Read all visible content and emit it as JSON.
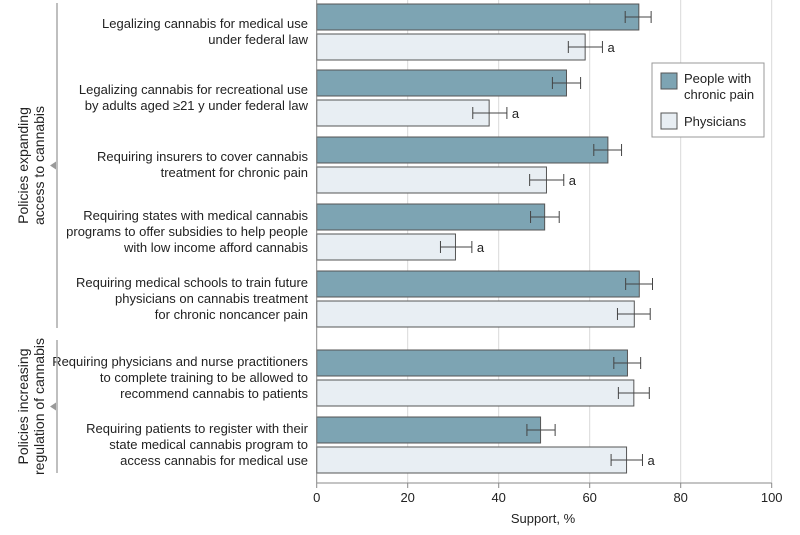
{
  "chart_data": {
    "type": "bar",
    "orientation": "horizontal",
    "title": "",
    "xlabel": "Support, %",
    "ylabel": "",
    "xlim": [
      0,
      100
    ],
    "xticks": [
      "0",
      "20",
      "40",
      "60",
      "80",
      "100"
    ],
    "grid": true,
    "legend_position": "right",
    "colors": {
      "people": "#7da4b3",
      "physicians": "#e8eef3",
      "edge": "#555555",
      "grid": "#d9d9d9"
    },
    "groups": [
      {
        "label": "Policies expanding access to cannabis",
        "item_count": 5
      },
      {
        "label": "Policies increasing regulation of cannabis",
        "item_count": 2
      }
    ],
    "categories": [
      [
        "Legalizing cannabis for medical use",
        "under federal law"
      ],
      [
        "Legalizing cannabis for recreational use",
        "by adults aged ≥21 y under federal law"
      ],
      [
        "Requiring insurers to cover cannabis",
        "treatment for chronic pain"
      ],
      [
        "Requiring states with medical cannabis",
        "programs to offer subsidies to help people",
        "with low income afford cannabis"
      ],
      [
        "Requiring medical schools to train future",
        "physicians on cannabis treatment",
        "for chronic noncancer pain"
      ],
      [
        "Requiring physicians and nurse practitioners",
        "to complete training to be allowed to",
        "recommend cannabis to patients"
      ],
      [
        "Requiring patients to register with their",
        "state medical cannabis program to",
        "access cannabis for medical use"
      ]
    ],
    "series": [
      {
        "name": "People with chronic pain",
        "legend_lines": [
          "People with",
          "chronic pain"
        ],
        "values": [
          70.8,
          54.9,
          64.0,
          50.1,
          70.9,
          68.3,
          49.2
        ],
        "ci_low": [
          67.8,
          51.8,
          60.9,
          47.0,
          67.9,
          65.3,
          46.2
        ],
        "ci_high": [
          73.5,
          58.0,
          67.0,
          53.3,
          73.8,
          71.2,
          52.4
        ],
        "annotations": [
          "",
          "",
          "",
          "",
          "",
          "",
          ""
        ]
      },
      {
        "name": "Physicians",
        "legend_lines": [
          "Physicians"
        ],
        "values": [
          59.0,
          37.9,
          50.5,
          30.5,
          69.8,
          69.7,
          68.1
        ],
        "ci_low": [
          55.3,
          34.3,
          46.8,
          27.2,
          66.1,
          66.3,
          64.7
        ],
        "ci_high": [
          62.8,
          41.8,
          54.3,
          34.1,
          73.3,
          73.1,
          71.6
        ],
        "annotations": [
          "a",
          "a",
          "a",
          "a",
          "",
          "",
          "a"
        ]
      }
    ]
  }
}
